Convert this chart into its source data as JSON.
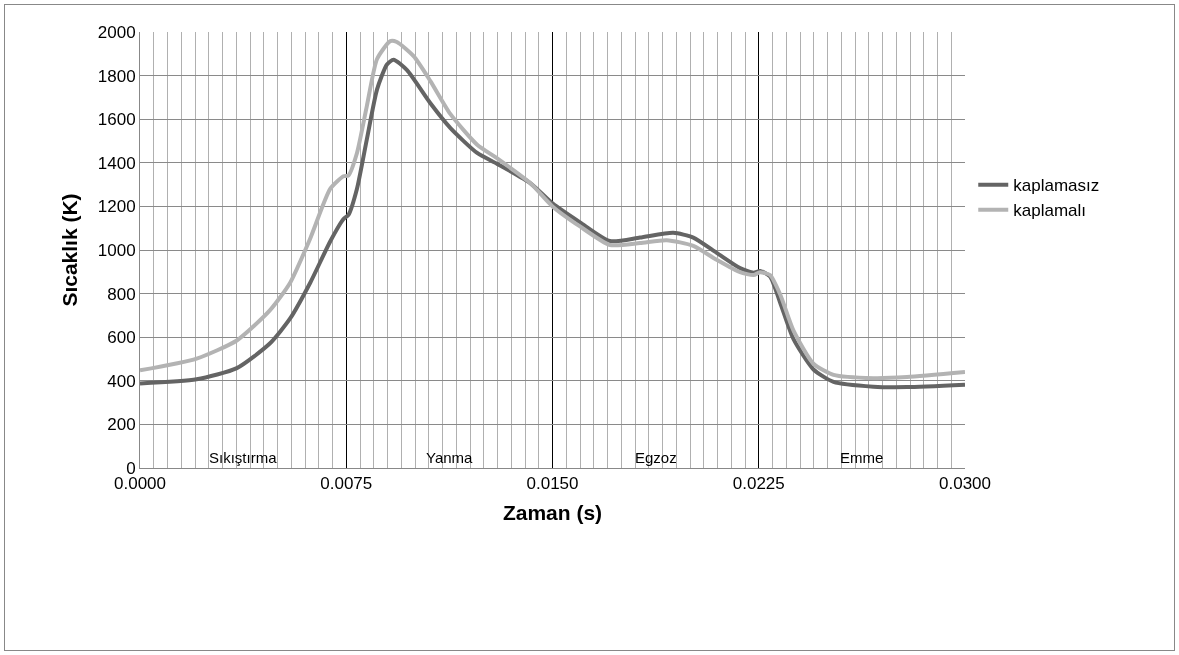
{
  "chart_data": {
    "type": "line",
    "xlabel": "Zaman (s)",
    "ylabel": "Sıcaklık (K)",
    "series": [
      {
        "name": "kaplamasız",
        "color": "#646464",
        "x": [
          0,
          0.00206,
          0.00352,
          0.00473,
          0.00546,
          0.00619,
          0.00692,
          0.0074,
          0.00758,
          0.00789,
          0.00825,
          0.00862,
          0.00898,
          0.00922,
          0.00971,
          0.01056,
          0.01129,
          0.01226,
          0.01299,
          0.0142,
          0.015,
          0.016,
          0.01709,
          0.01818,
          0.01939,
          0.02012,
          0.02097,
          0.02182,
          0.02231,
          0.02255,
          0.02291,
          0.02328,
          0.02376,
          0.02449,
          0.02522,
          0.02667,
          0.02789,
          0.03
        ],
        "values": [
          388,
          407,
          458,
          572,
          686,
          850,
          1040,
          1142,
          1161,
          1281,
          1509,
          1737,
          1851,
          1873,
          1825,
          1673,
          1559,
          1445,
          1395,
          1306,
          1214,
          1127,
          1041,
          1057,
          1079,
          1057,
          987,
          917,
          896,
          904,
          879,
          758,
          592,
          452,
          395,
          373,
          371,
          382
        ]
      },
      {
        "name": "kaplamalı",
        "color": "#b3b3b3",
        "x": [
          0,
          0.00206,
          0.00352,
          0.00473,
          0.00546,
          0.00619,
          0.00692,
          0.0074,
          0.00758,
          0.00789,
          0.00825,
          0.00862,
          0.0091,
          0.00934,
          0.00995,
          0.01056,
          0.01129,
          0.01226,
          0.01299,
          0.0142,
          0.015,
          0.016,
          0.01709,
          0.01818,
          0.01915,
          0.02012,
          0.02097,
          0.02182,
          0.02231,
          0.02255,
          0.02291,
          0.02328,
          0.02376,
          0.02449,
          0.02522,
          0.02667,
          0.02789,
          0.03
        ],
        "values": [
          448,
          502,
          585,
          724,
          850,
          1053,
          1281,
          1338,
          1342,
          1445,
          1661,
          1876,
          1958,
          1954,
          1889,
          1775,
          1623,
          1483,
          1420,
          1306,
          1200,
          1108,
          1023,
          1032,
          1045,
          1019,
          955,
          898,
          885,
          898,
          885,
          796,
          631,
          478,
          427,
          412,
          417,
          440
        ]
      }
    ],
    "xlim": [
      0,
      0.03
    ],
    "ylim": [
      0,
      2000
    ],
    "xticks": [
      {
        "value": 0,
        "label": "0.0000"
      },
      {
        "value": 0.0005,
        "label": null
      },
      {
        "value": 0.001,
        "label": null
      },
      {
        "value": 0.0015,
        "label": null
      },
      {
        "value": 0.002,
        "label": null
      },
      {
        "value": 0.0025,
        "label": null
      },
      {
        "value": 0.003,
        "label": null
      },
      {
        "value": 0.0035,
        "label": null
      },
      {
        "value": 0.004,
        "label": null
      },
      {
        "value": 0.0045,
        "label": null
      },
      {
        "value": 0.005,
        "label": null
      },
      {
        "value": 0.0055,
        "label": null
      },
      {
        "value": 0.006,
        "label": null
      },
      {
        "value": 0.0065,
        "label": null
      },
      {
        "value": 0.007,
        "label": null
      },
      {
        "value": 0.0075,
        "label": "0.0075"
      },
      {
        "value": 0.008,
        "label": null
      },
      {
        "value": 0.0085,
        "label": null
      },
      {
        "value": 0.009,
        "label": null
      },
      {
        "value": 0.0095,
        "label": null
      },
      {
        "value": 0.01,
        "label": null
      },
      {
        "value": 0.0105,
        "label": null
      },
      {
        "value": 0.011,
        "label": null
      },
      {
        "value": 0.0115,
        "label": null
      },
      {
        "value": 0.012,
        "label": null
      },
      {
        "value": 0.0125,
        "label": null
      },
      {
        "value": 0.013,
        "label": null
      },
      {
        "value": 0.0135,
        "label": null
      },
      {
        "value": 0.014,
        "label": null
      },
      {
        "value": 0.0145,
        "label": null
      },
      {
        "value": 0.015,
        "label": "0.0150"
      },
      {
        "value": 0.0155,
        "label": null
      },
      {
        "value": 0.016,
        "label": null
      },
      {
        "value": 0.0165,
        "label": null
      },
      {
        "value": 0.017,
        "label": null
      },
      {
        "value": 0.0175,
        "label": null
      },
      {
        "value": 0.018,
        "label": null
      },
      {
        "value": 0.0185,
        "label": null
      },
      {
        "value": 0.019,
        "label": null
      },
      {
        "value": 0.0195,
        "label": null
      },
      {
        "value": 0.02,
        "label": null
      },
      {
        "value": 0.0205,
        "label": null
      },
      {
        "value": 0.021,
        "label": null
      },
      {
        "value": 0.0215,
        "label": null
      },
      {
        "value": 0.022,
        "label": null
      },
      {
        "value": 0.0225,
        "label": "0.0225"
      },
      {
        "value": 0.023,
        "label": null
      },
      {
        "value": 0.0235,
        "label": null
      },
      {
        "value": 0.024,
        "label": null
      },
      {
        "value": 0.0245,
        "label": null
      },
      {
        "value": 0.025,
        "label": null
      },
      {
        "value": 0.0255,
        "label": null
      },
      {
        "value": 0.026,
        "label": null
      },
      {
        "value": 0.0265,
        "label": null
      },
      {
        "value": 0.027,
        "label": null
      },
      {
        "value": 0.0275,
        "label": null
      },
      {
        "value": 0.028,
        "label": null
      },
      {
        "value": 0.0285,
        "label": null
      },
      {
        "value": 0.029,
        "label": null
      },
      {
        "value": 0.0295,
        "label": null
      },
      {
        "value": 0.03,
        "label": "0.0300"
      }
    ],
    "yticks": [
      0,
      200,
      400,
      600,
      800,
      1000,
      1200,
      1400,
      1600,
      1800,
      2000
    ],
    "grid": true,
    "legend": "right",
    "marker": "none",
    "line_style": "solid",
    "annotations": [
      "Sıkıştırma",
      "Yanma",
      "Egzoz",
      "Emme"
    ]
  }
}
